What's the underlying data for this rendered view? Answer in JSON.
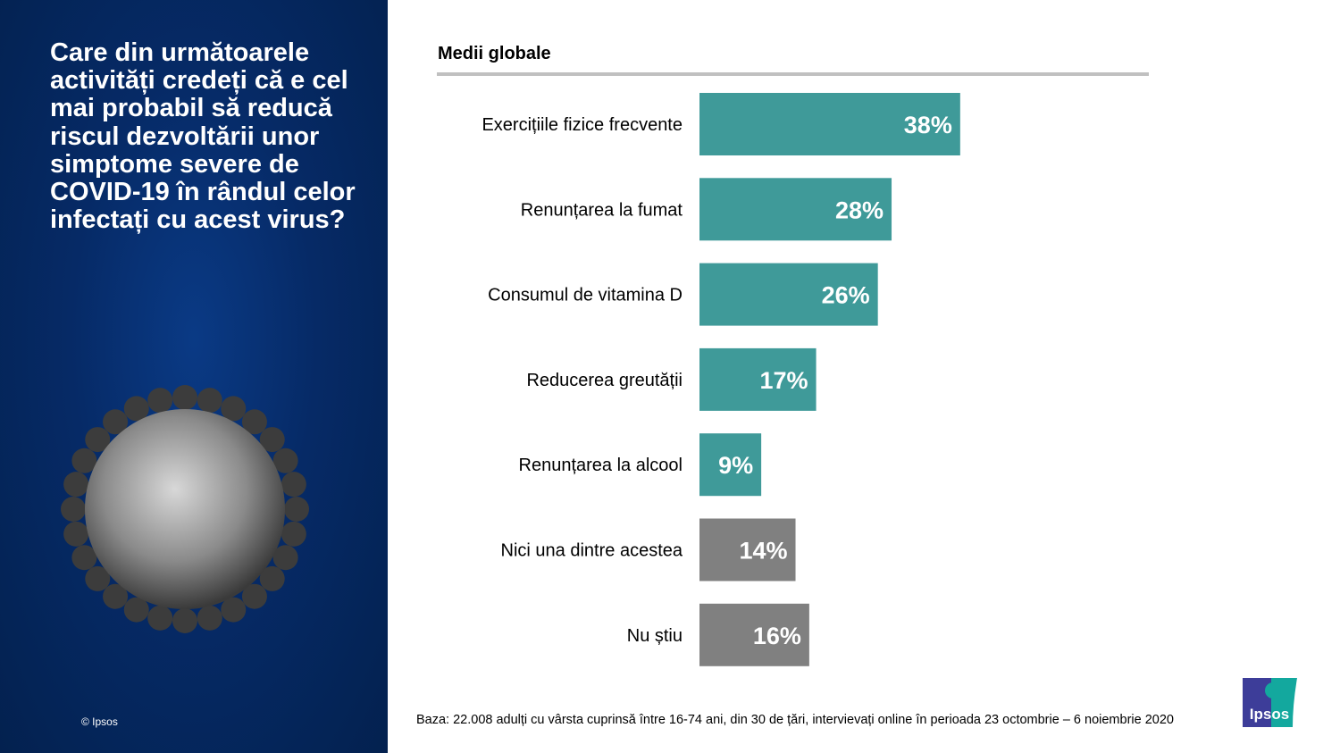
{
  "question": "Care din următoarele activități credeți că e cel mai probabil să reducă riscul dezvoltării unor simptome severe de COVID-19 în rândul celor infectați cu acest virus?",
  "copyright": "© Ipsos",
  "footnote": "Baza: 22.008 adulți cu vârsta cuprinsă între 16-74 ani, din 30 de țări, intervievați online în perioada 23 octombrie – 6 noiembrie 2020",
  "logo_text": "Ipsos",
  "colors": {
    "teal": "#3f9a99",
    "gray": "#808080",
    "panel": "#062a66"
  },
  "chart_data": {
    "type": "bar",
    "orientation": "horizontal",
    "title": "Medii globale",
    "categories": [
      "Exercițiile fizice frecvente",
      "Renunțarea la fumat",
      "Consumul de vitamina D",
      "Reducerea greutății",
      "Renunțarea la alcool",
      "Nici una dintre acestea",
      "Nu știu"
    ],
    "values": [
      38,
      28,
      26,
      17,
      9,
      14,
      16
    ],
    "labels": [
      "38%",
      "28%",
      "26%",
      "17%",
      "9%",
      "14%",
      "16%"
    ],
    "bar_colors": [
      "#3f9a99",
      "#3f9a99",
      "#3f9a99",
      "#3f9a99",
      "#3f9a99",
      "#808080",
      "#808080"
    ],
    "unit": "%",
    "xlim": [
      0,
      100
    ],
    "grid": false,
    "legend": "none"
  }
}
